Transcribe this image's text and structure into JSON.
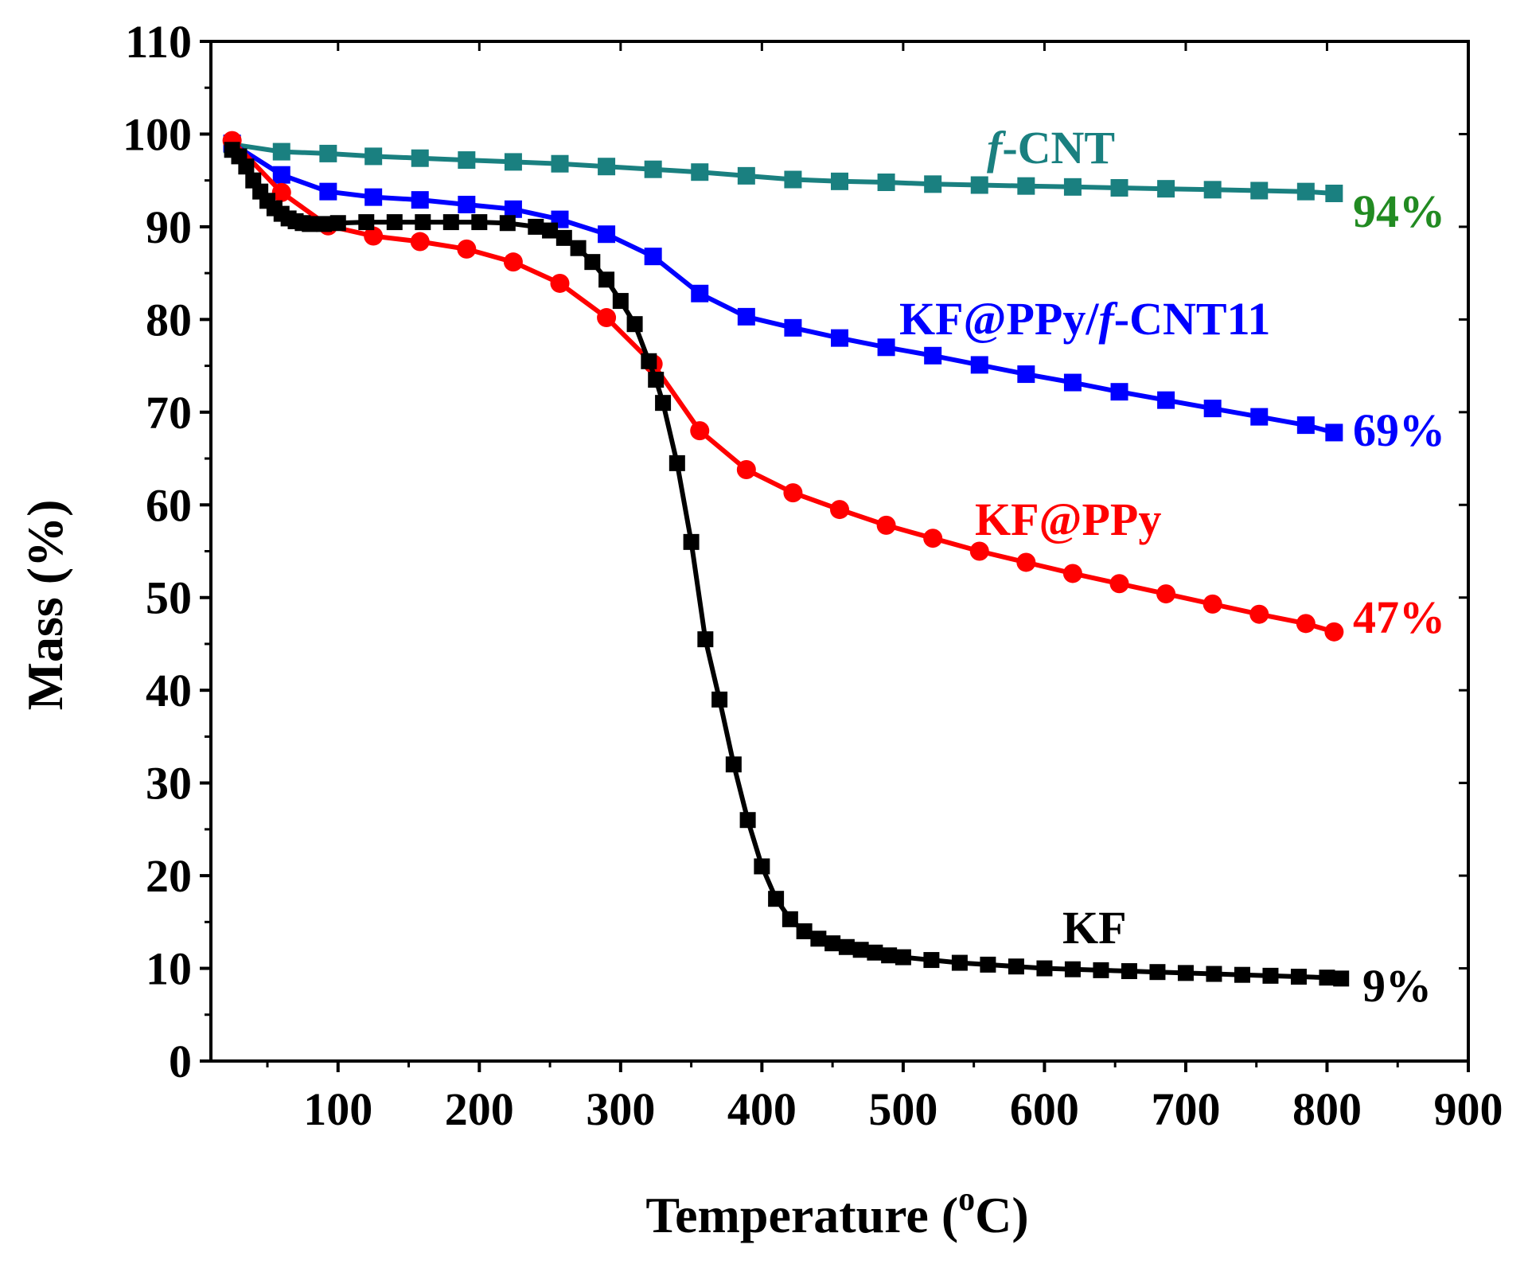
{
  "chart_data": {
    "type": "line",
    "xlabel_main": "Temperature (",
    "xlabel_sup": "o",
    "xlabel_end": "C)",
    "ylabel": "Mass (%)",
    "xlim": [
      10,
      900
    ],
    "ylim": [
      0,
      110
    ],
    "x_ticks": [
      "100",
      "200",
      "300",
      "400",
      "500",
      "600",
      "700",
      "800",
      "900"
    ],
    "x_tick_values": [
      100,
      200,
      300,
      400,
      500,
      600,
      700,
      800,
      900
    ],
    "y_ticks": [
      "0",
      "10",
      "20",
      "30",
      "40",
      "50",
      "60",
      "70",
      "80",
      "90",
      "100",
      "110"
    ],
    "y_tick_values": [
      0,
      10,
      20,
      30,
      40,
      50,
      60,
      70,
      80,
      90,
      100,
      110
    ],
    "series": [
      {
        "key": "fcnt",
        "color": "#1a8080",
        "marker": "square",
        "x": [
          25,
          60,
          93,
          125,
          158,
          191,
          224,
          257,
          290,
          323,
          356,
          389,
          422,
          455,
          488,
          521,
          554,
          587,
          620,
          653,
          686,
          719,
          752,
          785,
          805
        ],
        "y": [
          98.9,
          98.1,
          97.9,
          97.6,
          97.4,
          97.2,
          97.0,
          96.8,
          96.5,
          96.2,
          95.9,
          95.5,
          95.1,
          94.9,
          94.8,
          94.6,
          94.5,
          94.4,
          94.3,
          94.2,
          94.1,
          94.0,
          93.9,
          93.8,
          93.6
        ]
      },
      {
        "key": "kf_ppy_fcnt",
        "color": "#0000ff",
        "marker": "square",
        "x": [
          25,
          60,
          93,
          125,
          158,
          191,
          224,
          257,
          290,
          323,
          356,
          389,
          422,
          455,
          488,
          521,
          554,
          587,
          620,
          653,
          686,
          719,
          752,
          785,
          805
        ],
        "y": [
          99.0,
          95.6,
          93.8,
          93.2,
          92.9,
          92.4,
          91.9,
          90.8,
          89.2,
          86.8,
          82.8,
          80.3,
          79.1,
          78.0,
          77.0,
          76.1,
          75.1,
          74.1,
          73.2,
          72.2,
          71.3,
          70.4,
          69.5,
          68.6,
          67.8
        ]
      },
      {
        "key": "kf_ppy",
        "color": "#ff0000",
        "marker": "circle",
        "x": [
          25,
          60,
          93,
          125,
          158,
          191,
          224,
          257,
          290,
          323,
          356,
          389,
          422,
          455,
          488,
          521,
          554,
          587,
          620,
          653,
          686,
          719,
          752,
          785,
          805
        ],
        "y": [
          99.3,
          93.7,
          90.1,
          89.0,
          88.4,
          87.6,
          86.2,
          83.9,
          80.2,
          75.2,
          68.0,
          63.8,
          61.3,
          59.5,
          57.8,
          56.4,
          55.0,
          53.8,
          52.6,
          51.5,
          50.4,
          49.3,
          48.2,
          47.2,
          46.3
        ]
      },
      {
        "key": "kf",
        "color": "#000000",
        "marker": "square",
        "x": [
          25,
          30,
          35,
          40,
          45,
          50,
          55,
          60,
          65,
          70,
          75,
          80,
          90,
          100,
          120,
          140,
          160,
          180,
          200,
          220,
          240,
          250,
          260,
          270,
          280,
          290,
          300,
          310,
          320,
          325,
          330,
          340,
          350,
          360,
          370,
          380,
          390,
          400,
          410,
          420,
          430,
          440,
          450,
          460,
          470,
          480,
          490,
          500,
          520,
          540,
          560,
          580,
          600,
          620,
          640,
          660,
          680,
          700,
          720,
          740,
          760,
          780,
          800,
          810
        ],
        "y": [
          98.3,
          97.6,
          96.5,
          95.0,
          93.8,
          92.8,
          92.0,
          91.4,
          90.9,
          90.6,
          90.4,
          90.3,
          90.3,
          90.4,
          90.5,
          90.5,
          90.5,
          90.5,
          90.5,
          90.4,
          90.0,
          89.6,
          88.8,
          87.7,
          86.2,
          84.3,
          82.0,
          79.5,
          75.5,
          73.5,
          71.0,
          64.5,
          56.0,
          45.5,
          39.0,
          32.0,
          26.0,
          21.0,
          17.5,
          15.3,
          14.0,
          13.2,
          12.7,
          12.3,
          12.0,
          11.7,
          11.4,
          11.2,
          10.9,
          10.6,
          10.4,
          10.2,
          10.0,
          9.9,
          9.8,
          9.7,
          9.6,
          9.5,
          9.4,
          9.3,
          9.2,
          9.1,
          9.0,
          8.9
        ]
      }
    ],
    "labels": [
      {
        "series": "fcnt",
        "prefix": "f",
        "text": "-CNT",
        "color": "#1a8080"
      },
      {
        "series": "kf_ppy_fcnt",
        "text": "KF@PPy/",
        "italic": "f",
        "suffix": "-CNT11",
        "color": "#0000ff"
      },
      {
        "series": "kf_ppy",
        "text": "KF@PPy",
        "color": "#ff0000"
      },
      {
        "series": "kf",
        "text": "KF",
        "color": "#000000"
      }
    ],
    "end_labels": [
      {
        "series": "fcnt",
        "text": "94%",
        "color": "#228b22"
      },
      {
        "series": "kf_ppy_fcnt",
        "text": "69%",
        "color": "#0000ff"
      },
      {
        "series": "kf_ppy",
        "text": "47%",
        "color": "#ff0000"
      },
      {
        "series": "kf",
        "text": "9%",
        "color": "#000000"
      }
    ]
  }
}
